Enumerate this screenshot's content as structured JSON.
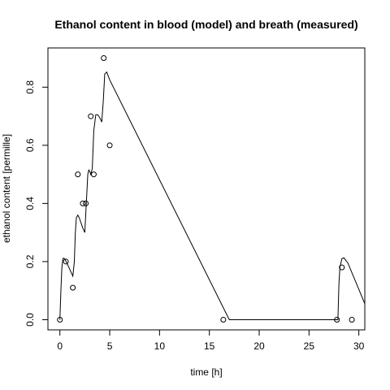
{
  "chart_data": {
    "type": "line",
    "title": "Ethanol content in blood (model) and breath (measured)",
    "xlabel": "time [h]",
    "ylabel": "ethanol content [permille]",
    "xlim": [
      -1.2,
      30.6
    ],
    "ylim": [
      -0.035,
      0.935
    ],
    "xticks": [
      0,
      5,
      10,
      15,
      20,
      25,
      30
    ],
    "yticks": [
      0.0,
      0.2,
      0.4,
      0.6,
      0.8
    ],
    "ytick_labels": [
      "0.0",
      "0.2",
      "0.4",
      "0.6",
      "0.8"
    ],
    "grid": false,
    "series": [
      {
        "name": "",
        "kind": "line",
        "x": [
          0.0,
          0.1,
          0.2,
          0.3,
          0.4,
          0.55,
          0.7,
          0.9,
          1.1,
          1.3,
          1.45,
          1.55,
          1.65,
          1.8,
          1.95,
          2.1,
          2.3,
          2.5,
          2.65,
          2.8,
          2.9,
          3.0,
          3.1,
          3.25,
          3.4,
          3.6,
          3.8,
          4.0,
          4.2,
          4.35,
          4.5,
          4.7,
          5.0,
          17.0,
          27.9,
          28.0,
          28.1,
          28.3,
          28.5,
          28.9,
          30.6
        ],
        "y": [
          0.0,
          0.1,
          0.18,
          0.21,
          0.212,
          0.205,
          0.195,
          0.18,
          0.165,
          0.15,
          0.2,
          0.3,
          0.35,
          0.36,
          0.35,
          0.335,
          0.315,
          0.3,
          0.4,
          0.5,
          0.515,
          0.51,
          0.5,
          0.52,
          0.65,
          0.705,
          0.705,
          0.695,
          0.68,
          0.75,
          0.845,
          0.852,
          0.825,
          0.0,
          0.0,
          0.12,
          0.18,
          0.21,
          0.213,
          0.195,
          0.055
        ]
      },
      {
        "name": "",
        "kind": "scatter",
        "x": [
          0.0,
          0.6,
          1.3,
          1.8,
          2.3,
          2.6,
          3.1,
          3.4,
          4.4,
          5.0,
          16.4,
          27.8,
          28.3,
          29.3
        ],
        "y": [
          0.0,
          0.2,
          0.11,
          0.5,
          0.4,
          0.4,
          0.7,
          0.5,
          0.9,
          0.6,
          0.0,
          0.0,
          0.18,
          0.0
        ]
      }
    ]
  }
}
